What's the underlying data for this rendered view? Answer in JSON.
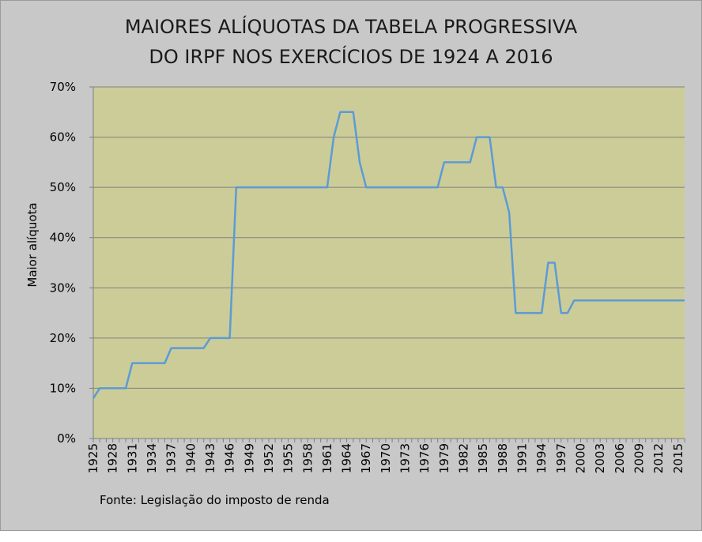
{
  "chart_data": {
    "type": "line",
    "title_lines": [
      "MAIORES ALÍQUOTAS DA TABELA PROGRESSIVA",
      "DO IRPF NOS EXERCÍCIOS  DE 1924 A 2016"
    ],
    "xlabel": "",
    "ylabel": "Maior alíquota",
    "source": "Fonte: Legislação do imposto de renda",
    "ylim": [
      0,
      70
    ],
    "yticks": [
      "0%",
      "10%",
      "20%",
      "30%",
      "40%",
      "50%",
      "60%",
      "70%"
    ],
    "xticks": [
      "1925",
      "1928",
      "1931",
      "1934",
      "1937",
      "1940",
      "1943",
      "1946",
      "1949",
      "1952",
      "1955",
      "1958",
      "1961",
      "1964",
      "1967",
      "1970",
      "1973",
      "1976",
      "1979",
      "1982",
      "1985",
      "1988",
      "1991",
      "1994",
      "1997",
      "2000",
      "2003",
      "2006",
      "2009",
      "2012",
      "2015"
    ],
    "xlim": [
      1925,
      2016
    ],
    "grid": true,
    "colors": {
      "plot_bg": "#cccc99",
      "frame_bg": "#c8c8c8",
      "line": "#5b9bd5",
      "grid": "#808080"
    },
    "series": [
      {
        "x": [
          1925,
          1926,
          1927,
          1928,
          1929,
          1930,
          1931,
          1932,
          1933,
          1934,
          1935,
          1936,
          1937,
          1938,
          1939,
          1940,
          1941,
          1942,
          1943,
          1944,
          1945,
          1946,
          1947,
          1948,
          1950,
          1955,
          1960,
          1961,
          1962,
          1963,
          1964,
          1965,
          1966,
          1967,
          1968,
          1970,
          1975,
          1977,
          1978,
          1979,
          1980,
          1981,
          1982,
          1983,
          1984,
          1985,
          1986,
          1987,
          1988,
          1989,
          1990,
          1991,
          1992,
          1993,
          1994,
          1995,
          1996,
          1997,
          1998,
          1999,
          2000,
          2005,
          2010,
          2015,
          2016
        ],
        "y": [
          8,
          10,
          10,
          10,
          10,
          10,
          15,
          15,
          15,
          15,
          15,
          15,
          18,
          18,
          18,
          18,
          18,
          18,
          20,
          20,
          20,
          20,
          50,
          50,
          50,
          50,
          50,
          50,
          60,
          65,
          65,
          65,
          55,
          50,
          50,
          50,
          50,
          50,
          50,
          55,
          55,
          55,
          55,
          55,
          60,
          60,
          60,
          50,
          50,
          45,
          25,
          25,
          25,
          25,
          25,
          35,
          35,
          25,
          25,
          27.5,
          27.5,
          27.5,
          27.5,
          27.5,
          27.5
        ]
      }
    ]
  }
}
